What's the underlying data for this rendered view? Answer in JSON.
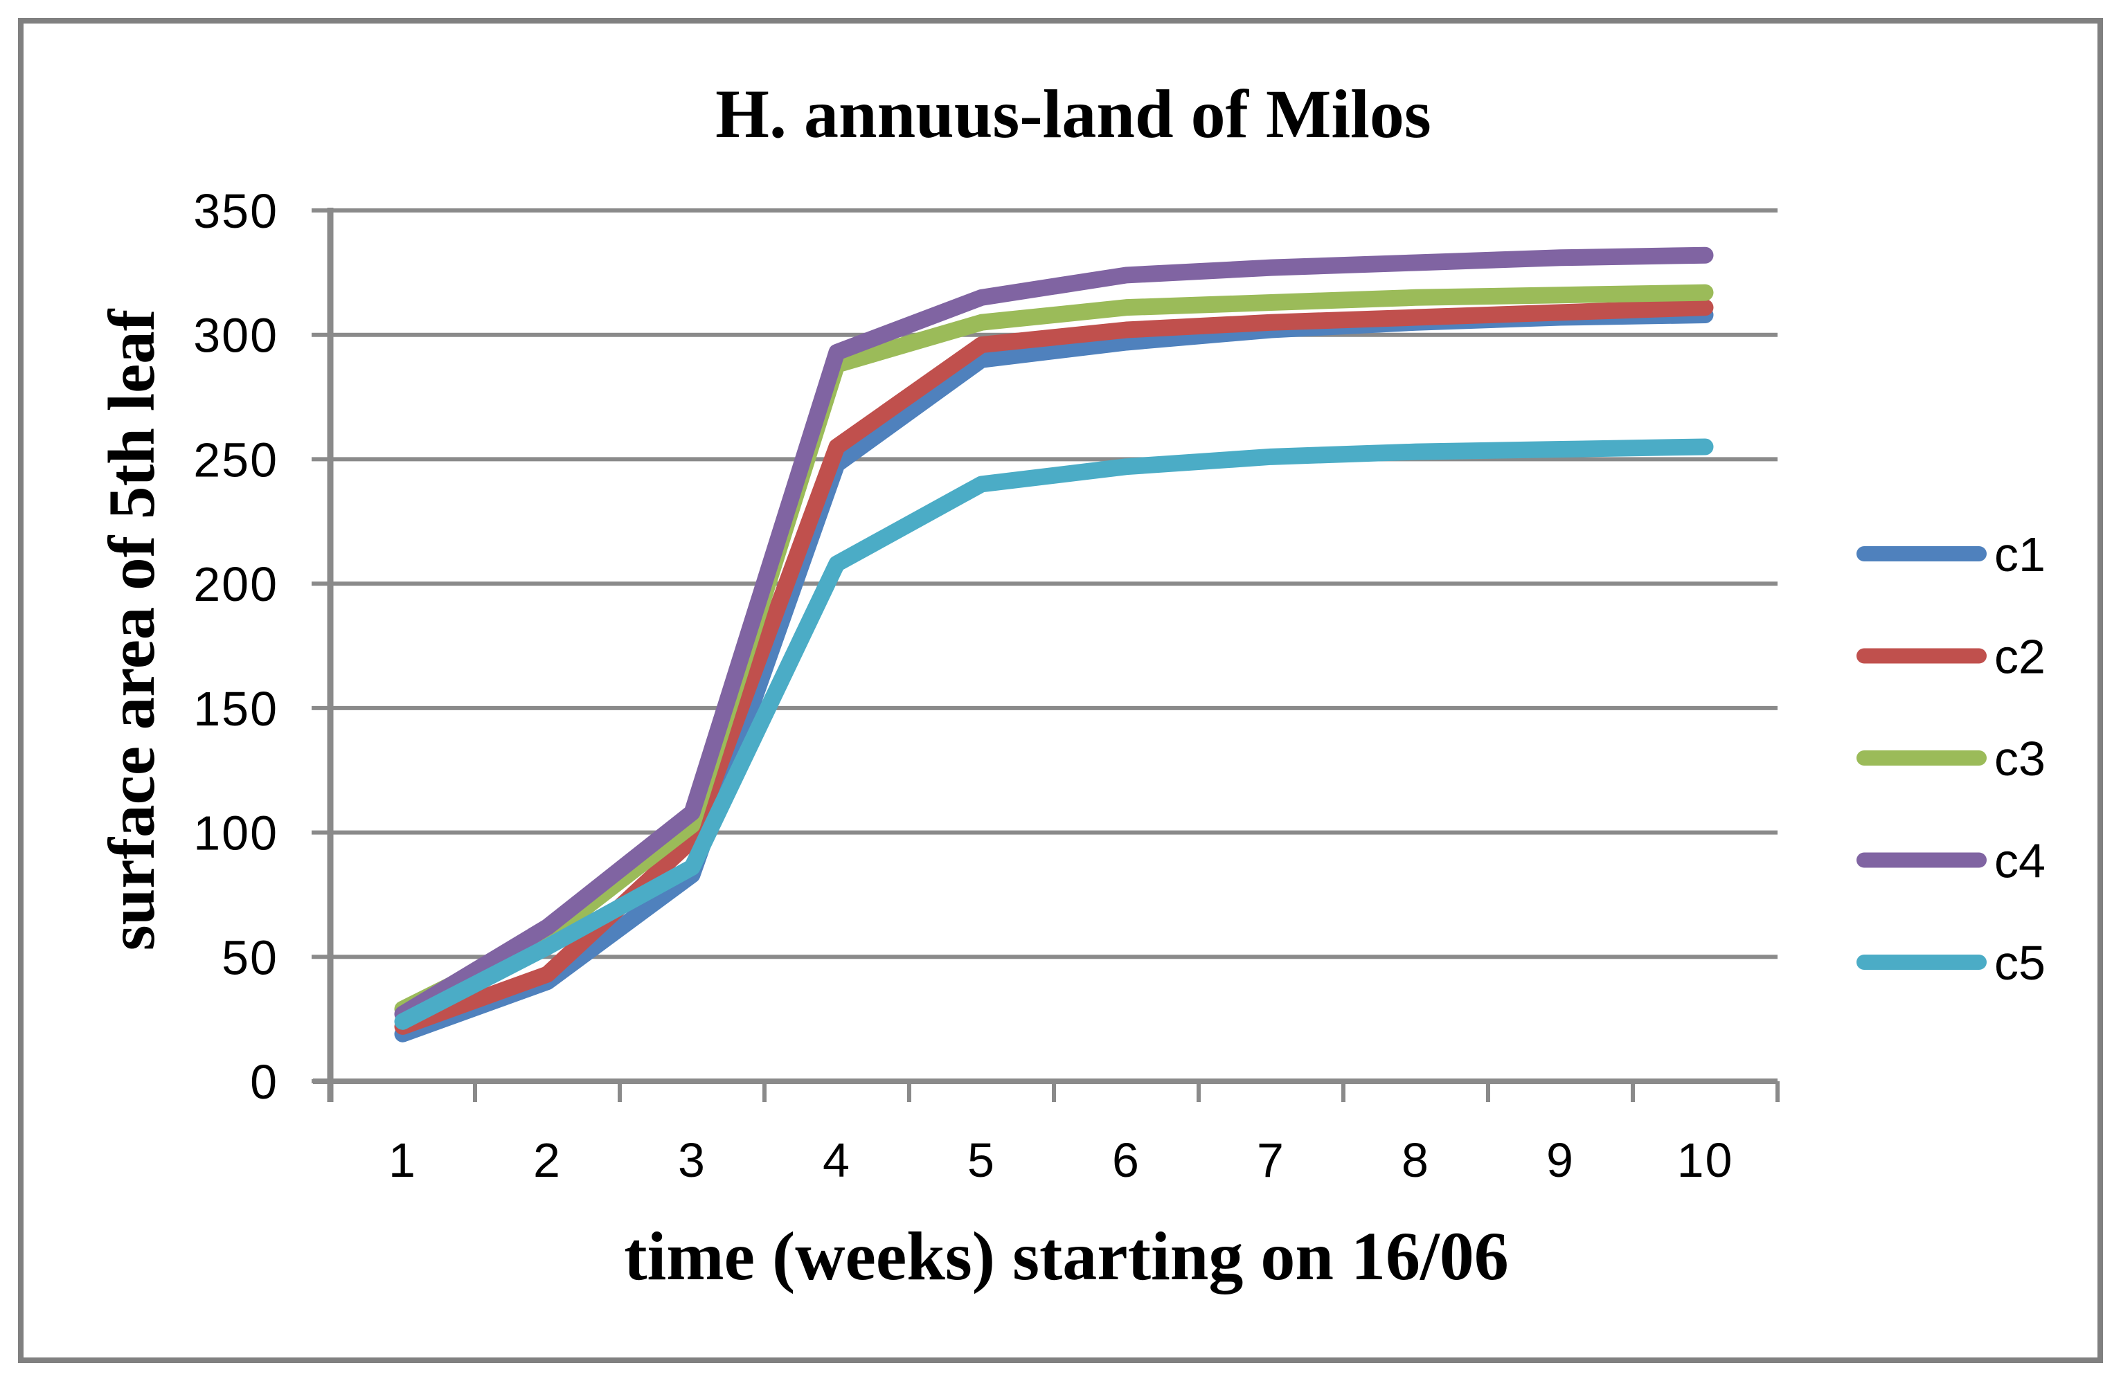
{
  "title": "H. annuus-land of Milos",
  "chart_data": {
    "type": "line",
    "title": "H. annuus-land of Milos",
    "xlabel": "time (weeks) starting on 16/06",
    "ylabel": "surface area of 5th leaf",
    "x": [
      1,
      2,
      3,
      4,
      5,
      6,
      7,
      8,
      9,
      10
    ],
    "x_tick_labels": [
      "1",
      "2",
      "3",
      "4",
      "5",
      "6",
      "7",
      "8",
      "9",
      "10"
    ],
    "ylim": [
      0,
      350
    ],
    "ytick_interval": 50,
    "y_tick_labels": [
      "0",
      "50",
      "100",
      "150",
      "200",
      "250",
      "300",
      "350"
    ],
    "grid": "horizontal",
    "legend_position": "right",
    "series": [
      {
        "name": "c1",
        "color": "#4F81BD",
        "values": [
          19,
          40,
          83,
          248,
          290,
          297,
          302,
          305,
          307,
          308
        ]
      },
      {
        "name": "c2",
        "color": "#C0504D",
        "values": [
          22,
          43,
          97,
          255,
          296,
          302,
          305,
          307,
          309,
          311
        ]
      },
      {
        "name": "c3",
        "color": "#9BBB59",
        "values": [
          29,
          58,
          103,
          288,
          305,
          311,
          313,
          315,
          316,
          317
        ]
      },
      {
        "name": "c4",
        "color": "#8064A2",
        "values": [
          27,
          62,
          108,
          293,
          315,
          324,
          327,
          329,
          331,
          332
        ]
      },
      {
        "name": "c5",
        "color": "#4BACC6",
        "values": [
          24,
          54,
          86,
          208,
          240,
          247,
          251,
          253,
          254,
          255
        ]
      }
    ],
    "colors": {
      "gridline": "#8A8A8A",
      "axis": "#8A8A8A",
      "outer_border": "#808080",
      "background": "#FFFFFF",
      "text": "#000000"
    }
  }
}
